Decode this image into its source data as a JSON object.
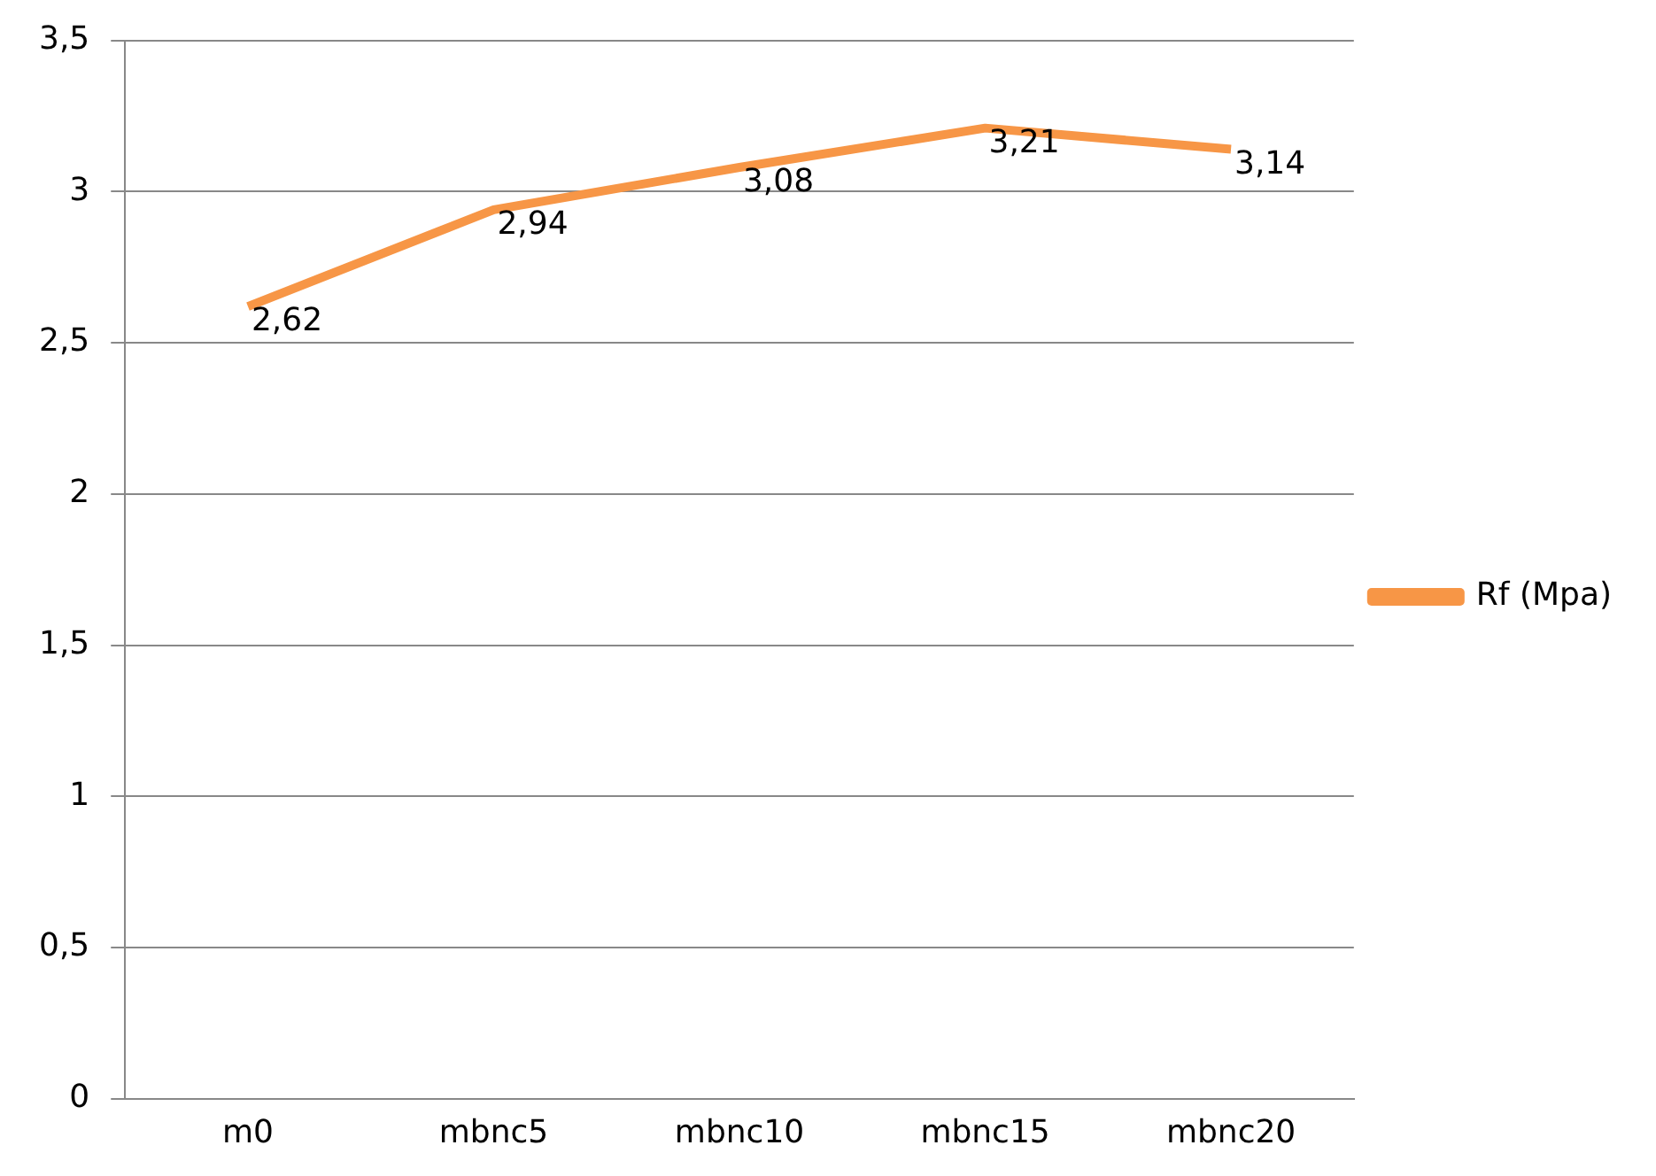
{
  "chart_data": {
    "type": "line",
    "categories": [
      "m0",
      "mbnc5",
      "mbnc10",
      "mbnc15",
      "mbnc20"
    ],
    "series": [
      {
        "name": "Rf (Mpa)",
        "color": "#f79646",
        "values": [
          2.62,
          2.94,
          3.08,
          3.21,
          3.14
        ],
        "value_labels": [
          "2,62",
          "2,94",
          "3,08",
          "3,21",
          "3,14"
        ]
      }
    ],
    "ylim": [
      0,
      3.5
    ],
    "yticks": [
      0,
      {
        "value": 0.5,
        "label": "0,5"
      },
      1,
      {
        "value": 1.5,
        "label": "1,5"
      },
      2,
      {
        "value": 2.5,
        "label": "2,5"
      },
      3,
      {
        "value": 3.5,
        "label": "3,5"
      }
    ],
    "grid": "y",
    "legend": "right",
    "marker": "none",
    "line_style": "solid"
  }
}
